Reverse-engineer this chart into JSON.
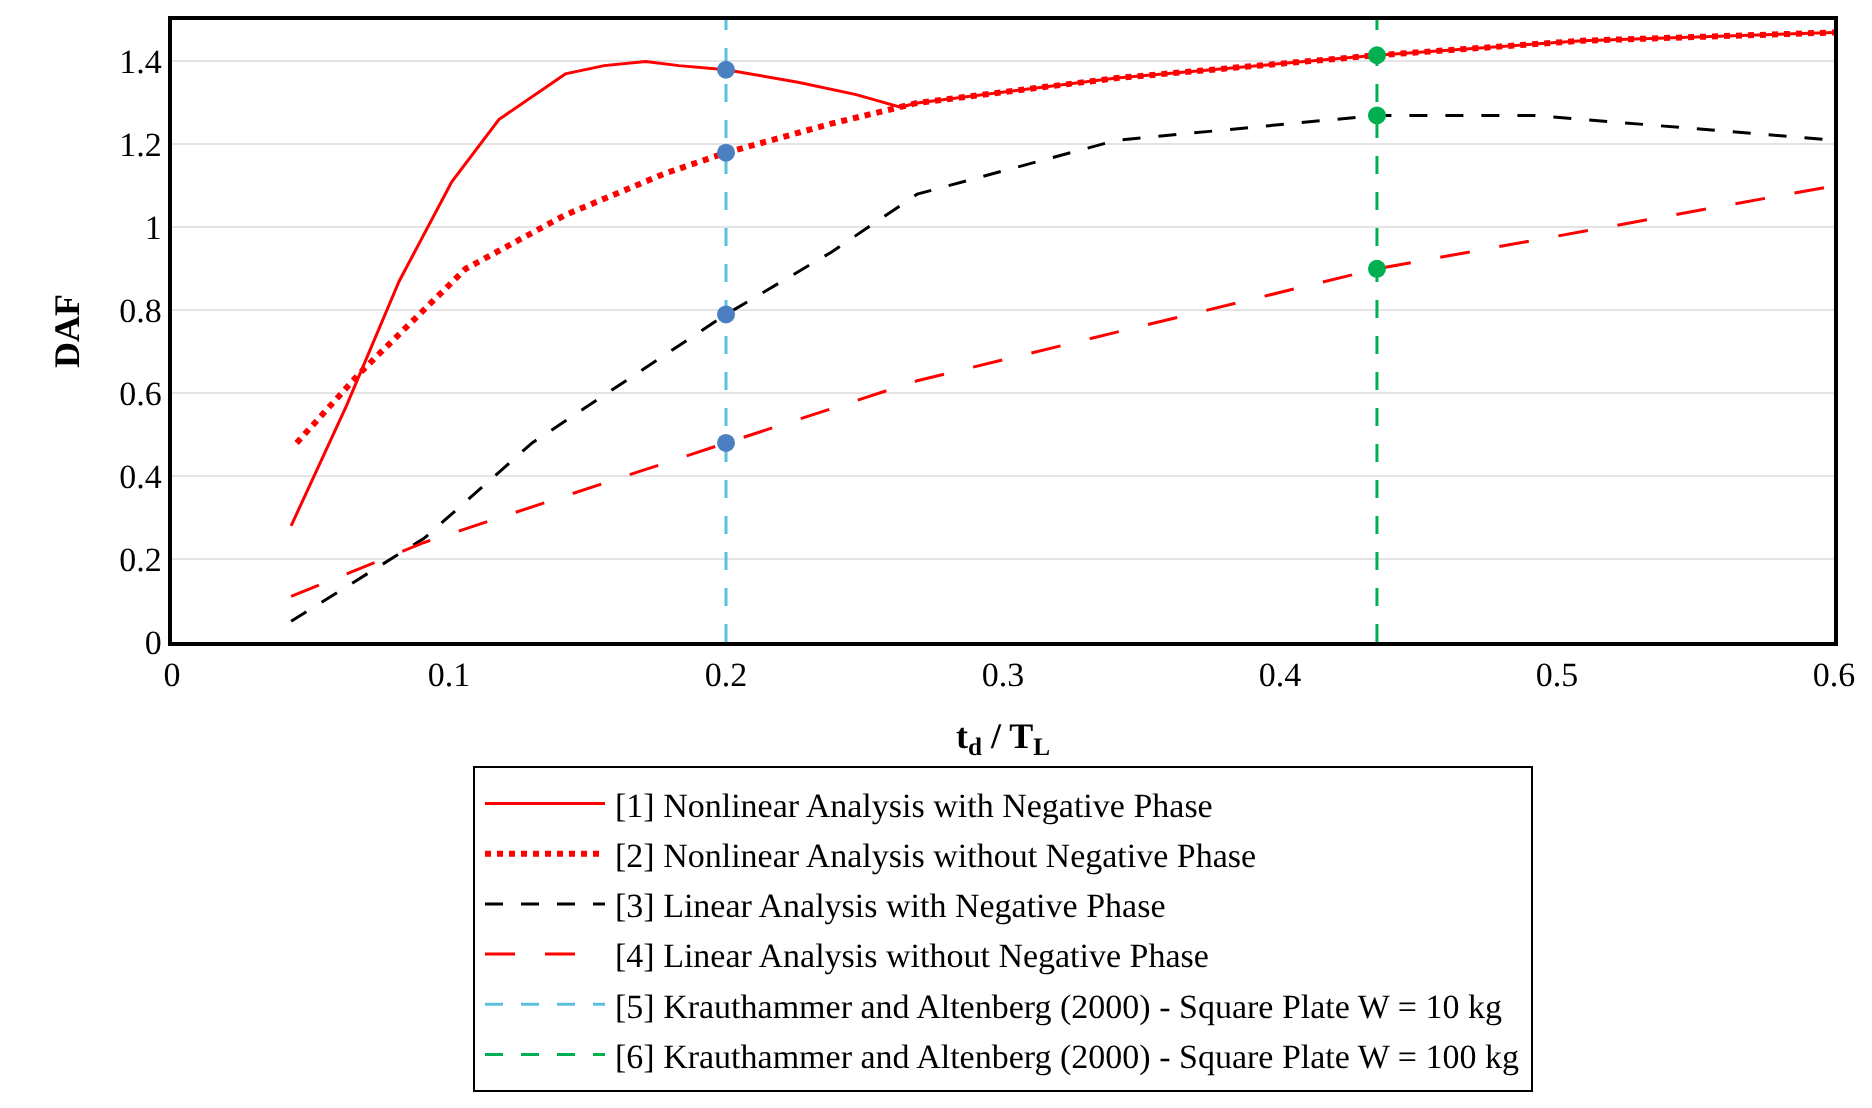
{
  "chart_data": {
    "type": "line",
    "xlabel": "t$_{d}$ / T$_{L}$",
    "ylabel": "DAF",
    "xlim": [
      0,
      0.6
    ],
    "xticks": [
      0,
      0.1,
      0.2,
      0.3,
      0.4,
      0.5,
      0.6
    ],
    "ylim": [
      0,
      1.5
    ],
    "yticks": [
      0,
      0.2,
      0.4,
      0.6,
      0.8,
      1,
      1.2,
      1.4
    ],
    "grid": "y",
    "legend": "bottom",
    "series": [
      {
        "name": "[1] Nonlinear Analysis with Negative Phase",
        "color": "#ff0000",
        "line_style": "solid",
        "x": [
          0.043,
          0.063,
          0.082,
          0.101,
          0.118,
          0.142,
          0.156,
          0.171,
          0.183,
          0.2,
          0.226,
          0.247,
          0.263,
          0.269,
          0.341,
          0.435,
          0.509,
          0.6
        ],
        "values": [
          0.28,
          0.57,
          0.87,
          1.11,
          1.26,
          1.37,
          1.39,
          1.4,
          1.39,
          1.38,
          1.35,
          1.32,
          1.29,
          1.3,
          1.36,
          1.415,
          1.45,
          1.47
        ]
      },
      {
        "name": "[2] Nonlinear Analysis without Negative Phase",
        "color": "#ff0000",
        "line_style": "dotted",
        "x": [
          0.045,
          0.068,
          0.106,
          0.142,
          0.178,
          0.2,
          0.238,
          0.269,
          0.341,
          0.435,
          0.509,
          0.6
        ],
        "values": [
          0.48,
          0.65,
          0.9,
          1.03,
          1.13,
          1.18,
          1.25,
          1.3,
          1.36,
          1.415,
          1.45,
          1.47
        ]
      },
      {
        "name": "[3] Linear Analysis with Negative Phase",
        "color": "#000000",
        "line_style": "dashed",
        "x": [
          0.043,
          0.091,
          0.13,
          0.2,
          0.238,
          0.269,
          0.341,
          0.435,
          0.492,
          0.6
        ],
        "values": [
          0.05,
          0.25,
          0.48,
          0.79,
          0.94,
          1.08,
          1.21,
          1.27,
          1.27,
          1.21
        ]
      },
      {
        "name": "[4] Linear Analysis without Negative Phase",
        "color": "#ff0000",
        "line_style": "longdash",
        "x": [
          0.043,
          0.091,
          0.2,
          0.269,
          0.435,
          0.6
        ],
        "values": [
          0.11,
          0.24,
          0.48,
          0.63,
          0.9,
          1.1
        ]
      },
      {
        "name": "[5] Krauthammer and Altenberg (2000) - Square Plate W = 10 kg",
        "color": "#5bc0de",
        "line_style": "dashed",
        "x": [
          0.2,
          0.2
        ],
        "values": [
          0,
          1.5
        ]
      },
      {
        "name": "[6] Krauthammer and Altenberg (2000) - Square Plate W = 100 kg",
        "color": "#00b050",
        "line_style": "dashed",
        "x": [
          0.435,
          0.435
        ],
        "values": [
          0,
          1.5
        ]
      },
      {
        "type": "scatter",
        "marker": "circle",
        "color": "#4a7fc1",
        "x": [
          0.2,
          0.2,
          0.2,
          0.2
        ],
        "values": [
          1.38,
          1.18,
          0.79,
          0.48
        ]
      },
      {
        "type": "scatter",
        "marker": "circle",
        "color": "#00b050",
        "x": [
          0.435,
          0.435,
          0.435
        ],
        "values": [
          1.415,
          1.27,
          0.9
        ]
      }
    ]
  }
}
